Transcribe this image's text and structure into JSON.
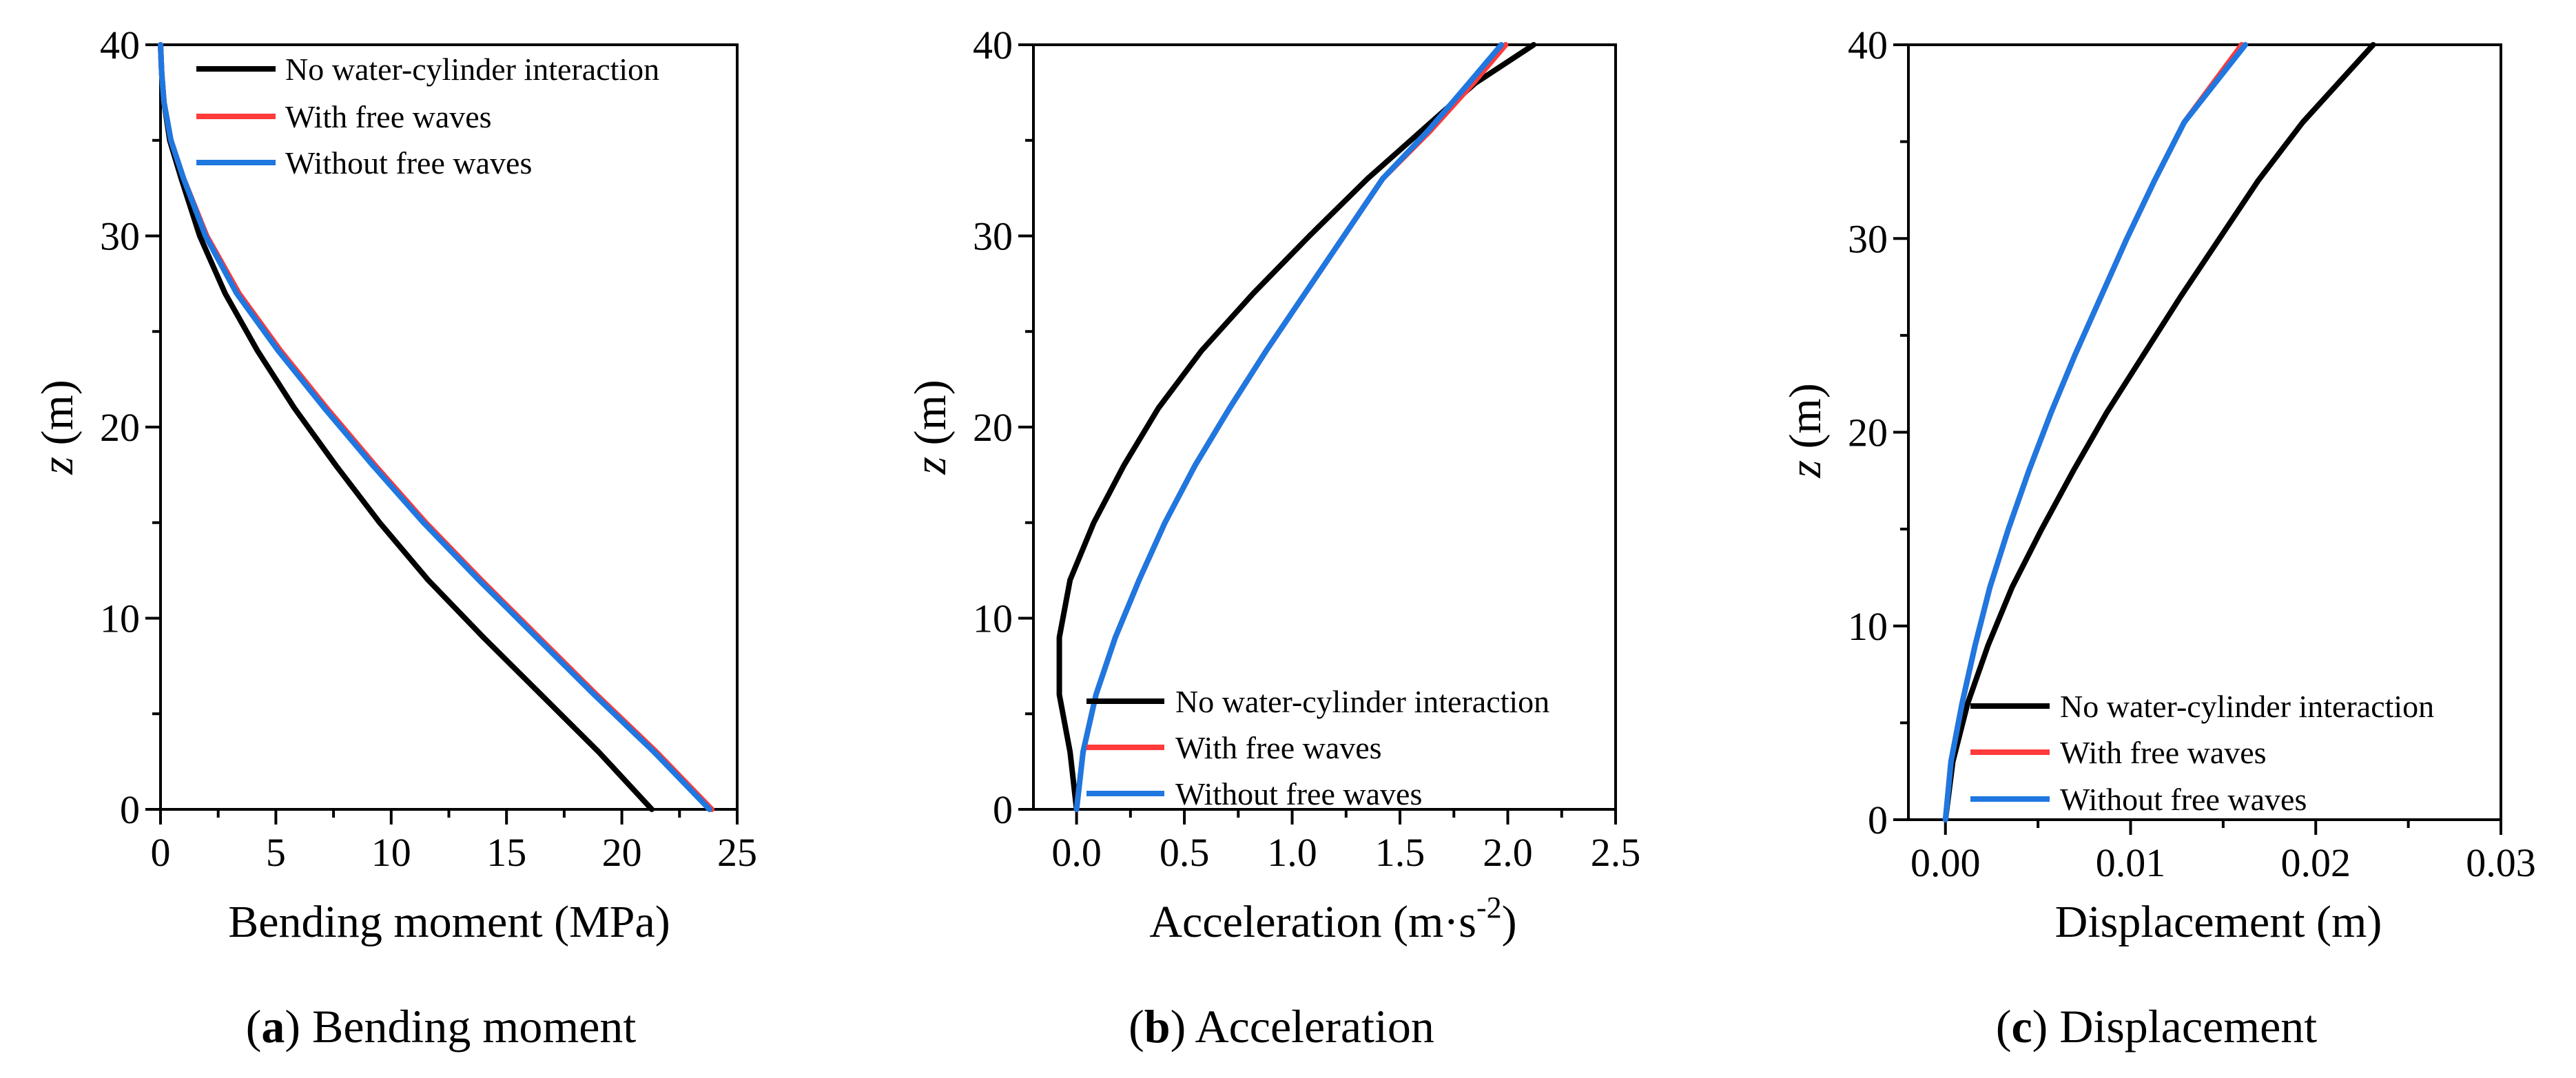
{
  "colors": {
    "no_interaction": "#000000",
    "with_free_waves": "#ff3b3b",
    "without_free_waves": "#1f77e0"
  },
  "chart_data": [
    {
      "type": "line",
      "caption_letter": "a",
      "caption_text": "Bending moment",
      "xlabel": "Bending moment (MPa)",
      "ylabel": "z (m)",
      "xlim": [
        0,
        25
      ],
      "ylim": [
        0,
        40
      ],
      "xticks": [
        "0",
        "5",
        "10",
        "15",
        "20",
        "25"
      ],
      "yticks": [
        "0",
        "10",
        "20",
        "30",
        "40"
      ],
      "legend_position": "top-right",
      "series": [
        {
          "name": "No water-cylinder interaction",
          "color_key": "no_interaction",
          "points": [
            [
              21.3,
              0
            ],
            [
              19.0,
              3
            ],
            [
              16.5,
              6
            ],
            [
              14.0,
              9
            ],
            [
              11.6,
              12
            ],
            [
              9.5,
              15
            ],
            [
              7.6,
              18
            ],
            [
              5.8,
              21
            ],
            [
              4.2,
              24
            ],
            [
              2.8,
              27
            ],
            [
              1.7,
              30
            ],
            [
              0.9,
              33
            ],
            [
              0.4,
              35
            ],
            [
              0.15,
              37
            ],
            [
              0.05,
              38.5
            ],
            [
              0.0,
              40
            ]
          ]
        },
        {
          "name": "With free waves",
          "color_key": "with_free_waves",
          "points": [
            [
              23.9,
              0
            ],
            [
              21.5,
              3
            ],
            [
              18.9,
              6
            ],
            [
              16.4,
              9
            ],
            [
              13.9,
              12
            ],
            [
              11.5,
              15
            ],
            [
              9.3,
              18
            ],
            [
              7.2,
              21
            ],
            [
              5.2,
              24
            ],
            [
              3.4,
              27
            ],
            [
              2.0,
              30
            ],
            [
              1.0,
              33
            ],
            [
              0.45,
              35
            ],
            [
              0.15,
              37
            ],
            [
              0.05,
              38.5
            ],
            [
              0.0,
              40
            ]
          ]
        },
        {
          "name": "Without free waves",
          "color_key": "without_free_waves",
          "points": [
            [
              23.8,
              0
            ],
            [
              21.4,
              3
            ],
            [
              18.8,
              6
            ],
            [
              16.3,
              9
            ],
            [
              13.8,
              12
            ],
            [
              11.4,
              15
            ],
            [
              9.2,
              18
            ],
            [
              7.1,
              21
            ],
            [
              5.1,
              24
            ],
            [
              3.3,
              27
            ],
            [
              1.95,
              30
            ],
            [
              1.0,
              33
            ],
            [
              0.45,
              35
            ],
            [
              0.15,
              37
            ],
            [
              0.05,
              38.5
            ],
            [
              0.0,
              40
            ]
          ]
        }
      ]
    },
    {
      "type": "line",
      "caption_letter": "b",
      "caption_text": "Acceleration",
      "xlabel_main": "Acceleration (m·s",
      "xlabel_sup": "-2",
      "xlabel_end": ")",
      "ylabel": "z (m)",
      "xlim": [
        -0.2,
        2.5
      ],
      "ylim": [
        0,
        40
      ],
      "xticks": [
        "0.0",
        "0.5",
        "1.0",
        "1.5",
        "2.0",
        "2.5"
      ],
      "xtick_values": [
        0.0,
        0.5,
        1.0,
        1.5,
        2.0,
        2.5
      ],
      "yticks": [
        "0",
        "10",
        "20",
        "30",
        "40"
      ],
      "legend_position": "bottom-right",
      "series": [
        {
          "name": "No water-cylinder interaction",
          "color_key": "no_interaction",
          "points": [
            [
              0.0,
              0
            ],
            [
              -0.03,
              3
            ],
            [
              -0.08,
              6
            ],
            [
              -0.08,
              9
            ],
            [
              -0.03,
              12
            ],
            [
              0.08,
              15
            ],
            [
              0.22,
              18
            ],
            [
              0.38,
              21
            ],
            [
              0.58,
              24
            ],
            [
              0.82,
              27
            ],
            [
              1.08,
              30
            ],
            [
              1.35,
              33
            ],
            [
              1.6,
              35.5
            ],
            [
              1.85,
              38
            ],
            [
              2.12,
              40
            ]
          ]
        },
        {
          "name": "With free waves",
          "color_key": "with_free_waves",
          "points": [
            [
              0.0,
              0
            ],
            [
              0.03,
              3
            ],
            [
              0.09,
              6
            ],
            [
              0.18,
              9
            ],
            [
              0.29,
              12
            ],
            [
              0.41,
              15
            ],
            [
              0.55,
              18
            ],
            [
              0.71,
              21
            ],
            [
              0.88,
              24
            ],
            [
              1.06,
              27
            ],
            [
              1.24,
              30
            ],
            [
              1.42,
              33
            ],
            [
              1.64,
              35.5
            ],
            [
              1.84,
              38
            ],
            [
              1.99,
              40
            ]
          ]
        },
        {
          "name": "Without free waves",
          "color_key": "without_free_waves",
          "points": [
            [
              0.0,
              0
            ],
            [
              0.03,
              3
            ],
            [
              0.09,
              6
            ],
            [
              0.18,
              9
            ],
            [
              0.29,
              12
            ],
            [
              0.41,
              15
            ],
            [
              0.55,
              18
            ],
            [
              0.71,
              21
            ],
            [
              0.88,
              24
            ],
            [
              1.06,
              27
            ],
            [
              1.24,
              30
            ],
            [
              1.42,
              33
            ],
            [
              1.63,
              35.5
            ],
            [
              1.82,
              38
            ],
            [
              1.97,
              40
            ]
          ]
        }
      ]
    },
    {
      "type": "line",
      "caption_letter": "c",
      "caption_text": "Displacement",
      "xlabel": "Displacement (m)",
      "ylabel": "z (m)",
      "xlim": [
        -0.002,
        0.03
      ],
      "ylim": [
        0,
        40
      ],
      "xticks": [
        "0.00",
        "0.01",
        "0.02",
        "0.03"
      ],
      "xtick_values": [
        0.0,
        0.01,
        0.02,
        0.03
      ],
      "yticks": [
        "0",
        "10",
        "20",
        "30",
        "40"
      ],
      "legend_position": "bottom-right",
      "series": [
        {
          "name": "No water-cylinder interaction",
          "color_key": "no_interaction",
          "points": [
            [
              0.0,
              0
            ],
            [
              0.0004,
              3
            ],
            [
              0.0012,
              6
            ],
            [
              0.0023,
              9
            ],
            [
              0.0036,
              12
            ],
            [
              0.0052,
              15
            ],
            [
              0.0069,
              18
            ],
            [
              0.0087,
              21
            ],
            [
              0.0107,
              24
            ],
            [
              0.0127,
              27
            ],
            [
              0.0148,
              30
            ],
            [
              0.0169,
              33
            ],
            [
              0.0193,
              36
            ],
            [
              0.0231,
              40
            ]
          ]
        },
        {
          "name": "With free waves",
          "color_key": "with_free_waves",
          "points": [
            [
              0.0,
              0
            ],
            [
              0.0003,
              3
            ],
            [
              0.0009,
              6
            ],
            [
              0.0016,
              9
            ],
            [
              0.0024,
              12
            ],
            [
              0.0034,
              15
            ],
            [
              0.0045,
              18
            ],
            [
              0.0057,
              21
            ],
            [
              0.007,
              24
            ],
            [
              0.0084,
              27
            ],
            [
              0.0098,
              30
            ],
            [
              0.0113,
              33
            ],
            [
              0.0129,
              36
            ],
            [
              0.016,
              40
            ]
          ]
        },
        {
          "name": "Without free waves",
          "color_key": "without_free_waves",
          "points": [
            [
              0.0,
              0
            ],
            [
              0.0003,
              3
            ],
            [
              0.0009,
              6
            ],
            [
              0.0016,
              9
            ],
            [
              0.0024,
              12
            ],
            [
              0.0034,
              15
            ],
            [
              0.0045,
              18
            ],
            [
              0.0057,
              21
            ],
            [
              0.007,
              24
            ],
            [
              0.0084,
              27
            ],
            [
              0.0098,
              30
            ],
            [
              0.0113,
              33
            ],
            [
              0.0129,
              36
            ],
            [
              0.0162,
              40
            ]
          ]
        }
      ]
    }
  ]
}
